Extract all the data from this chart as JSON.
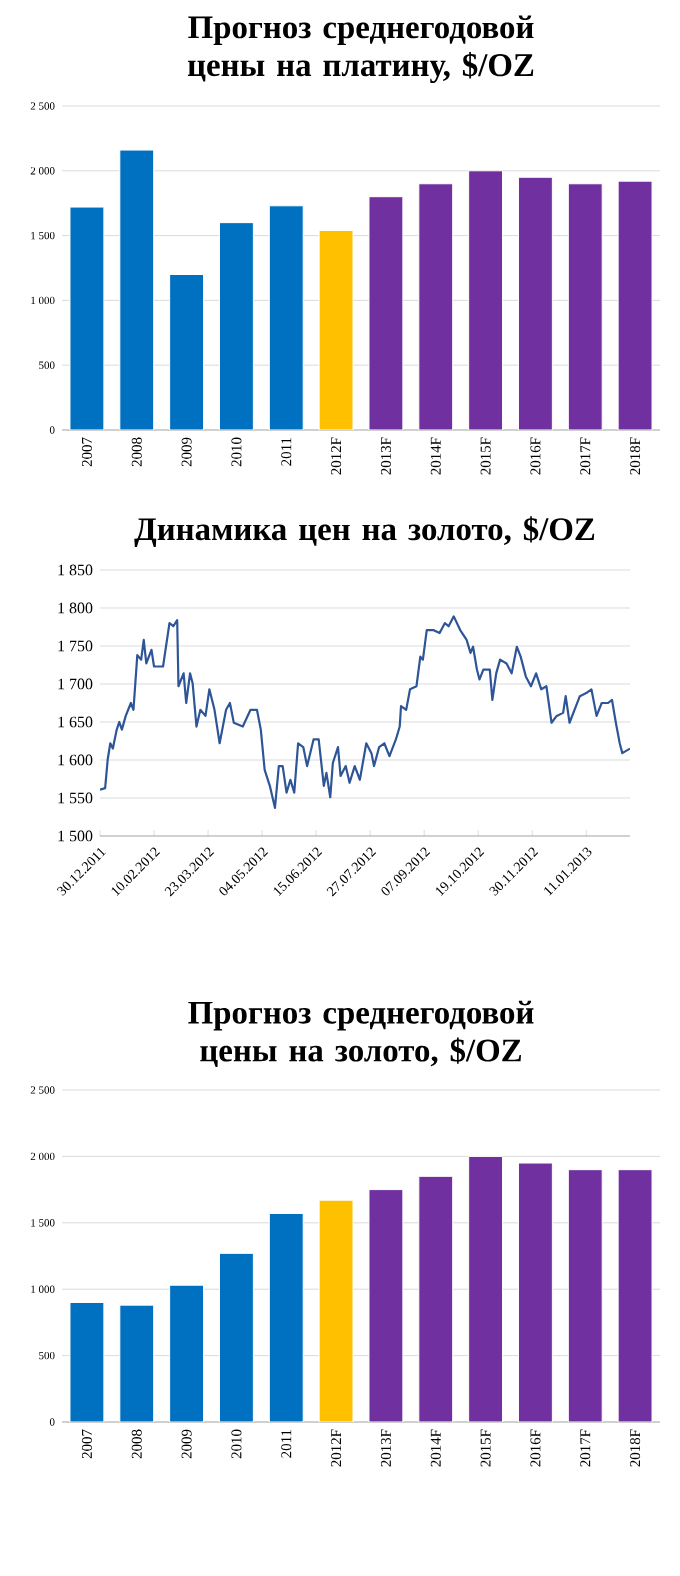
{
  "chart_data": [
    {
      "type": "bar",
      "title": "Прогноз среднегодовой цены на платину, $/OZ",
      "categories": [
        "2007",
        "2008",
        "2009",
        "2010",
        "2011",
        "2012F",
        "2013F",
        "2014F",
        "2015F",
        "2016F",
        "2017F",
        "2018F"
      ],
      "values": [
        1720,
        2160,
        1200,
        1600,
        1730,
        1540,
        1800,
        1900,
        2000,
        1950,
        1900,
        1920
      ],
      "colors": [
        "#0070c0",
        "#0070c0",
        "#0070c0",
        "#0070c0",
        "#0070c0",
        "#ffc000",
        "#7030a0",
        "#7030a0",
        "#7030a0",
        "#7030a0",
        "#7030a0",
        "#7030a0"
      ],
      "ylim": [
        0,
        2500
      ],
      "yticks": [
        0,
        500,
        {
          "value": 1000,
          "label": "1 000"
        },
        {
          "value": 1500,
          "label": "1 500"
        },
        {
          "value": 2000,
          "label": "2 000"
        },
        {
          "value": 2500,
          "label": "2 500"
        }
      ],
      "grid": "y"
    },
    {
      "type": "line",
      "title": "Динамика цен на золото, $/OZ",
      "x": [
        "2011-12-30",
        "2012-01-03",
        "2012-01-05",
        "2012-01-07",
        "2012-01-09",
        "2012-01-12",
        "2012-01-14",
        "2012-01-16",
        "2012-01-19",
        "2012-01-23",
        "2012-01-25",
        "2012-01-28",
        "2012-01-31",
        "2012-02-02",
        "2012-02-04",
        "2012-02-08",
        "2012-02-10",
        "2012-02-17",
        "2012-02-22",
        "2012-02-25",
        "2012-02-28",
        "2012-02-29",
        "2012-03-04",
        "2012-03-06",
        "2012-03-09",
        "2012-03-11",
        "2012-03-14",
        "2012-03-17",
        "2012-03-21",
        "2012-03-24",
        "2012-03-28",
        "2012-04-01",
        "2012-04-06",
        "2012-04-09",
        "2012-04-12",
        "2012-04-19",
        "2012-04-25",
        "2012-04-30",
        "2012-05-03",
        "2012-05-06",
        "2012-05-10",
        "2012-05-14",
        "2012-05-17",
        "2012-05-20",
        "2012-05-23",
        "2012-05-26",
        "2012-05-29",
        "2012-06-01",
        "2012-06-05",
        "2012-06-08",
        "2012-06-13",
        "2012-06-17",
        "2012-06-21",
        "2012-06-23",
        "2012-06-26",
        "2012-06-28",
        "2012-07-02",
        "2012-07-04",
        "2012-07-08",
        "2012-07-11",
        "2012-07-15",
        "2012-07-19",
        "2012-07-24",
        "2012-07-28",
        "2012-07-30",
        "2012-08-03",
        "2012-08-07",
        "2012-08-11",
        "2012-08-16",
        "2012-08-19",
        "2012-08-20",
        "2012-08-24",
        "2012-08-27",
        "2012-09-01",
        "2012-09-04",
        "2012-09-06",
        "2012-09-09",
        "2012-09-14",
        "2012-09-19",
        "2012-09-23",
        "2012-09-26",
        "2012-09-30",
        "2012-10-05",
        "2012-10-10",
        "2012-10-13",
        "2012-10-15",
        "2012-10-18",
        "2012-10-20",
        "2012-10-23",
        "2012-10-28",
        "2012-10-30",
        "2012-11-02",
        "2012-11-05",
        "2012-11-10",
        "2012-11-14",
        "2012-11-18",
        "2012-11-21",
        "2012-11-25",
        "2012-11-29",
        "2012-12-03",
        "2012-12-07",
        "2012-12-11",
        "2012-12-15",
        "2012-12-19",
        "2012-12-24",
        "2012-12-26",
        "2012-12-29",
        "2013-01-03",
        "2013-01-06",
        "2013-01-11",
        "2013-01-15",
        "2013-01-19",
        "2013-01-23",
        "2013-01-28",
        "2013-01-31",
        "2013-02-03",
        "2013-02-06",
        "2013-02-08",
        "2013-02-14"
      ],
      "values": [
        1561,
        1563,
        1601,
        1622,
        1615,
        1640,
        1650,
        1640,
        1658,
        1675,
        1666,
        1738,
        1732,
        1758,
        1727,
        1745,
        1723,
        1723,
        1780,
        1776,
        1784,
        1697,
        1714,
        1675,
        1714,
        1701,
        1644,
        1666,
        1658,
        1693,
        1666,
        1622,
        1666,
        1675,
        1649,
        1644,
        1666,
        1666,
        1640,
        1587,
        1566,
        1537,
        1592,
        1592,
        1557,
        1574,
        1557,
        1622,
        1617,
        1592,
        1627,
        1627,
        1566,
        1583,
        1551,
        1596,
        1617,
        1579,
        1592,
        1570,
        1592,
        1574,
        1622,
        1609,
        1592,
        1617,
        1622,
        1605,
        1627,
        1644,
        1671,
        1666,
        1693,
        1697,
        1736,
        1732,
        1771,
        1771,
        1767,
        1780,
        1776,
        1789,
        1771,
        1758,
        1741,
        1749,
        1719,
        1706,
        1719,
        1719,
        1679,
        1714,
        1732,
        1727,
        1714,
        1749,
        1736,
        1710,
        1697,
        1714,
        1693,
        1697,
        1649,
        1658,
        1662,
        1684,
        1649,
        1671,
        1684,
        1688,
        1693,
        1658,
        1675,
        1675,
        1679,
        1649,
        1622,
        1609,
        1615
      ],
      "color": "#2e5597",
      "xlim": [
        "2011-12-30",
        "2013-02-14"
      ],
      "xticks": [
        {
          "value": "2011-12-30",
          "label": "30.12.2011"
        },
        {
          "value": "2012-02-10",
          "label": "10.02.2012"
        },
        {
          "value": "2012-03-23",
          "label": "23.03.2012"
        },
        {
          "value": "2012-05-04",
          "label": "04.05.2012"
        },
        {
          "value": "2012-06-15",
          "label": "15.06.2012"
        },
        {
          "value": "2012-07-27",
          "label": "27.07.2012"
        },
        {
          "value": "2012-09-07",
          "label": "07.09.2012"
        },
        {
          "value": "2012-10-19",
          "label": "19.10.2012"
        },
        {
          "value": "2012-11-30",
          "label": "30.11.2012"
        },
        {
          "value": "2013-01-11",
          "label": "11.01.2013"
        }
      ],
      "ylim": [
        1500,
        1850
      ],
      "yticks": [
        {
          "value": 1500,
          "label": "1 500"
        },
        {
          "value": 1550,
          "label": "1 550"
        },
        {
          "value": 1600,
          "label": "1 600"
        },
        {
          "value": 1650,
          "label": "1 650"
        },
        {
          "value": 1700,
          "label": "1 700"
        },
        {
          "value": 1750,
          "label": "1 750"
        },
        {
          "value": 1800,
          "label": "1 800"
        },
        {
          "value": 1850,
          "label": "1 850"
        }
      ],
      "grid": "y"
    },
    {
      "type": "bar",
      "title": "Прогноз среднегодовой цены на золото, $/OZ",
      "categories": [
        "2007",
        "2008",
        "2009",
        "2010",
        "2011",
        "2012F",
        "2013F",
        "2014F",
        "2015F",
        "2016F",
        "2017F",
        "2018F"
      ],
      "values": [
        900,
        880,
        1030,
        1270,
        1570,
        1670,
        1750,
        1850,
        2000,
        1950,
        1900,
        1900
      ],
      "colors": [
        "#0070c0",
        "#0070c0",
        "#0070c0",
        "#0070c0",
        "#0070c0",
        "#ffc000",
        "#7030a0",
        "#7030a0",
        "#7030a0",
        "#7030a0",
        "#7030a0",
        "#7030a0"
      ],
      "ylim": [
        0,
        2500
      ],
      "yticks": [
        0,
        500,
        {
          "value": 1000,
          "label": "1 000"
        },
        {
          "value": 1500,
          "label": "1 500"
        },
        {
          "value": 2000,
          "label": "2 000"
        },
        {
          "value": 2500,
          "label": "2 500"
        }
      ],
      "grid": "y"
    }
  ]
}
